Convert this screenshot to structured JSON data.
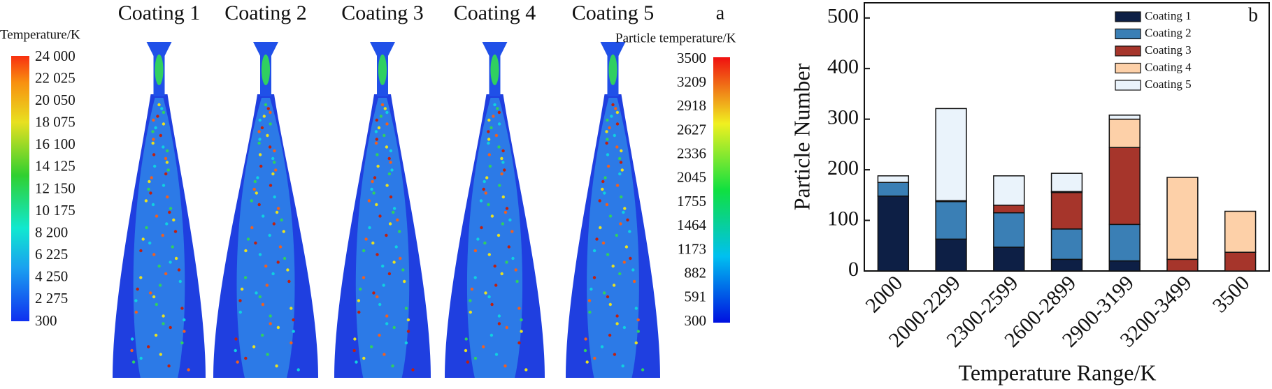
{
  "panel_a": {
    "label": "a",
    "titles": [
      "Coating 1",
      "Coating 2",
      "Coating 3",
      "Coating 4",
      "Coating 5"
    ],
    "gas_colorbar": {
      "title": "Temperature/K",
      "labels": [
        "24 000",
        "22 025",
        "20 050",
        "18 075",
        "16 100",
        "14 125",
        "12 150",
        "10 175",
        "8 200",
        "6 225",
        "4 250",
        "2 275",
        "300"
      ]
    },
    "particle_colorbar": {
      "title": "Particle temperature/K",
      "labels": [
        "3500",
        "3209",
        "2918",
        "2627",
        "2336",
        "2045",
        "1755",
        "1464",
        "1173",
        "882",
        "591",
        "300"
      ]
    }
  },
  "chart_data": {
    "type": "stacked_bar",
    "label": "b",
    "xlabel": "Temperature Range/K",
    "ylabel": "Particle Number",
    "categories": [
      "2000",
      "2000-2299",
      "2300-2599",
      "2600-2899",
      "2900-3199",
      "3200-3499",
      "3500"
    ],
    "series": [
      {
        "name": "Coating 1",
        "color": "#0d1f45",
        "values": [
          148,
          63,
          47,
          23,
          20,
          0,
          0
        ]
      },
      {
        "name": "Coating 2",
        "color": "#3a7fb5",
        "values": [
          27,
          74,
          68,
          60,
          72,
          0,
          0
        ]
      },
      {
        "name": "Coating 3",
        "color": "#a6352b",
        "values": [
          0,
          2,
          15,
          72,
          152,
          23,
          37
        ]
      },
      {
        "name": "Coating 4",
        "color": "#fdd0a8",
        "values": [
          0,
          0,
          0,
          2,
          56,
          162,
          81
        ]
      },
      {
        "name": "Coating 5",
        "color": "#eaf3fb",
        "values": [
          13,
          182,
          58,
          36,
          8,
          0,
          0
        ]
      }
    ],
    "ylim": [
      0,
      530
    ],
    "yticks": [
      0,
      100,
      200,
      300,
      400,
      500
    ],
    "legend": "upper-right"
  }
}
